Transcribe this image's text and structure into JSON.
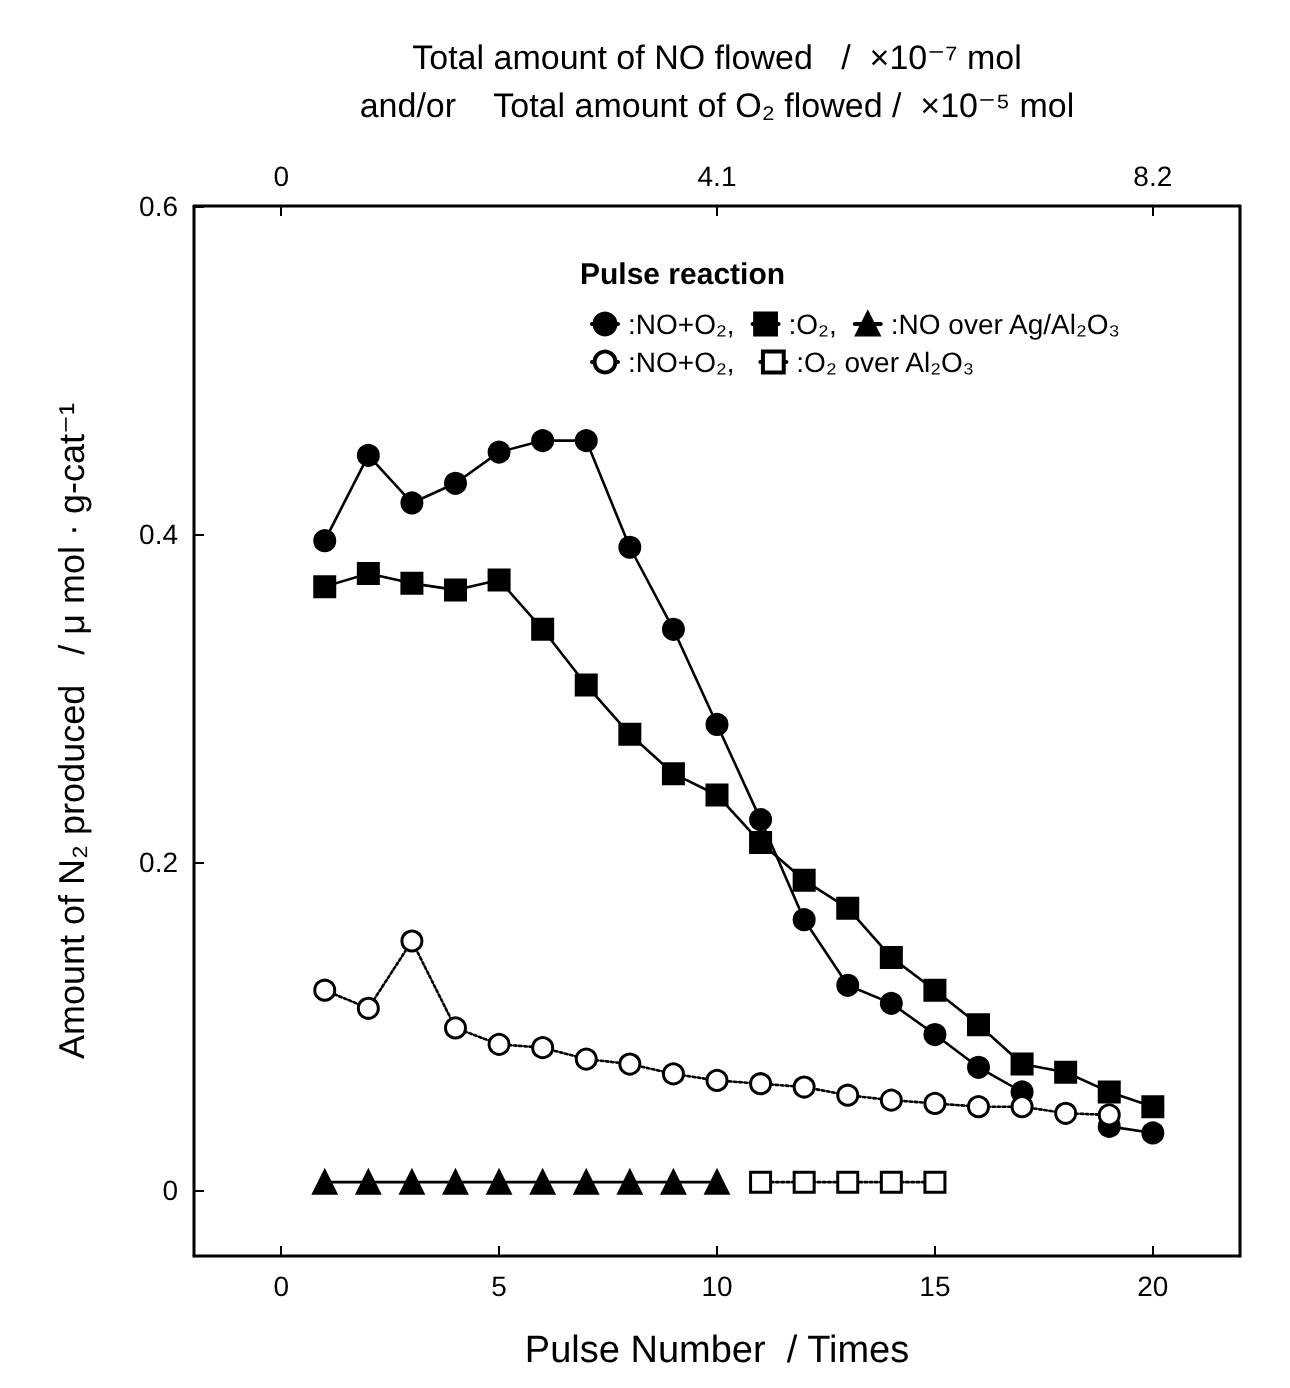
{
  "chart_data": {
    "type": "line",
    "xlabel": "Pulse Number  / Times",
    "ylabel": "Amount of N₂ produced   / μ mol · g-cat⁻¹",
    "x2label": "Total amount of NO flowed   /  ×10⁻⁷ mol\nand/or    Total amount of O₂ flowed /  ×10⁻⁵ mol",
    "legend_title": "Pulse reaction",
    "xlim": [
      -2,
      22
    ],
    "xticks": [
      0,
      5,
      10,
      15,
      20
    ],
    "x2lim": [
      -0.82,
      9.02
    ],
    "x2ticks": [
      0,
      4.1,
      8.2
    ],
    "ylim": [
      -0.04,
      0.6
    ],
    "yticks": [
      0,
      0.2,
      0.4,
      0.6
    ],
    "grid": false,
    "legend": "top right",
    "series": [
      {
        "name": ":NO+O₂,",
        "color": "#000000",
        "marker": "circle",
        "line_style": "solid",
        "x": [
          1,
          2,
          3,
          4,
          5,
          6,
          7,
          8,
          9,
          10,
          11,
          12,
          13,
          14,
          15,
          16,
          17,
          18,
          19,
          20
        ],
        "values": [
          0.396,
          0.448,
          0.419,
          0.431,
          0.45,
          0.457,
          0.457,
          0.392,
          0.342,
          0.284,
          0.226,
          0.165,
          0.125,
          0.114,
          0.095,
          0.075,
          0.06,
          null,
          0.039,
          0.035
        ]
      },
      {
        "name": ":O₂,",
        "color": "#000000",
        "marker": "square",
        "line_style": "solid",
        "x": [
          1,
          2,
          3,
          4,
          5,
          6,
          7,
          8,
          9,
          10,
          11,
          12,
          13,
          14,
          15,
          16,
          17,
          18,
          19,
          20
        ],
        "values": [
          0.368,
          0.376,
          0.37,
          0.366,
          0.372,
          0.342,
          0.308,
          0.278,
          0.254,
          0.241,
          0.212,
          0.189,
          0.172,
          0.142,
          0.122,
          0.101,
          0.077,
          0.072,
          0.06,
          0.051
        ]
      },
      {
        "name": ":NO over Ag/Al₂O₃",
        "color": "#000000",
        "marker": "triangle",
        "line_style": "solid",
        "x": [
          1,
          2,
          3,
          4,
          5,
          6,
          7,
          8,
          9,
          10
        ],
        "values": [
          0.005,
          0.005,
          0.005,
          0.005,
          0.005,
          0.005,
          0.005,
          0.005,
          0.005,
          0.005
        ]
      },
      {
        "name": ":NO+O₂, ",
        "color": "#ffffff",
        "marker": "circle",
        "line_style": "dotted",
        "x": [
          1,
          2,
          3,
          4,
          5,
          6,
          7,
          8,
          9,
          10,
          11,
          12,
          13,
          14,
          15,
          16,
          17,
          18,
          19
        ],
        "values": [
          0.122,
          0.111,
          0.152,
          0.099,
          0.089,
          0.087,
          0.08,
          0.077,
          0.071,
          0.067,
          0.065,
          0.063,
          0.058,
          0.055,
          0.053,
          0.051,
          0.051,
          0.047,
          0.046
        ]
      },
      {
        "name": ":O₂ over Al₂O₃",
        "color": "#ffffff",
        "marker": "square",
        "line_style": "dotted",
        "x": [
          11,
          12,
          13,
          14,
          15
        ],
        "values": [
          0.005,
          0.005,
          0.005,
          0.005,
          0.005
        ]
      }
    ]
  }
}
